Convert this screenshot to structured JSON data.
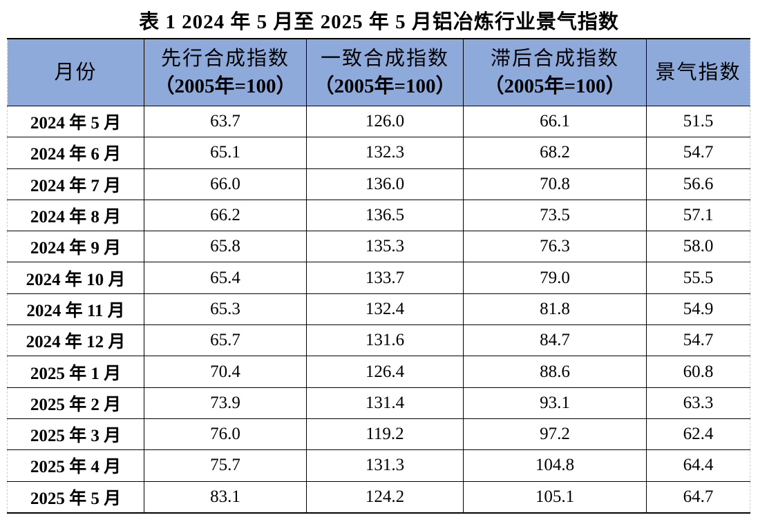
{
  "title": "表 1 2024 年 5 月至 2025 年 5 月铝冶炼行业景气指数",
  "colors": {
    "header_bg": "#8eaadb"
  },
  "headers": [
    {
      "label": "月份",
      "sub": ""
    },
    {
      "label": "先行合成指数",
      "sub": "（2005年=100）"
    },
    {
      "label": "一致合成指数",
      "sub": "（2005年=100）"
    },
    {
      "label": "滞后合成指数",
      "sub": "（2005年=100）"
    },
    {
      "label": "景气指数",
      "sub": ""
    }
  ],
  "rows": [
    [
      "2024 年 5 月",
      "63.7",
      "126.0",
      "66.1",
      "51.5"
    ],
    [
      "2024 年 6 月",
      "65.1",
      "132.3",
      "68.2",
      "54.7"
    ],
    [
      "2024 年 7 月",
      "66.0",
      "136.0",
      "70.8",
      "56.6"
    ],
    [
      "2024 年 8 月",
      "66.2",
      "136.5",
      "73.5",
      "57.1"
    ],
    [
      "2024 年 9 月",
      "65.8",
      "135.3",
      "76.3",
      "58.0"
    ],
    [
      "2024 年 10 月",
      "65.4",
      "133.7",
      "79.0",
      "55.5"
    ],
    [
      "2024 年 11 月",
      "65.3",
      "132.4",
      "81.8",
      "54.9"
    ],
    [
      "2024 年 12 月",
      "65.7",
      "131.6",
      "84.7",
      "54.7"
    ],
    [
      "2025 年 1 月",
      "70.4",
      "126.4",
      "88.6",
      "60.8"
    ],
    [
      "2025 年 2 月",
      "73.9",
      "131.4",
      "93.1",
      "63.3"
    ],
    [
      "2025 年 3 月",
      "76.0",
      "119.2",
      "97.2",
      "62.4"
    ],
    [
      "2025 年 4 月",
      "75.7",
      "131.3",
      "104.8",
      "64.4"
    ],
    [
      "2025 年 5 月",
      "83.1",
      "124.2",
      "105.1",
      "64.7"
    ]
  ]
}
